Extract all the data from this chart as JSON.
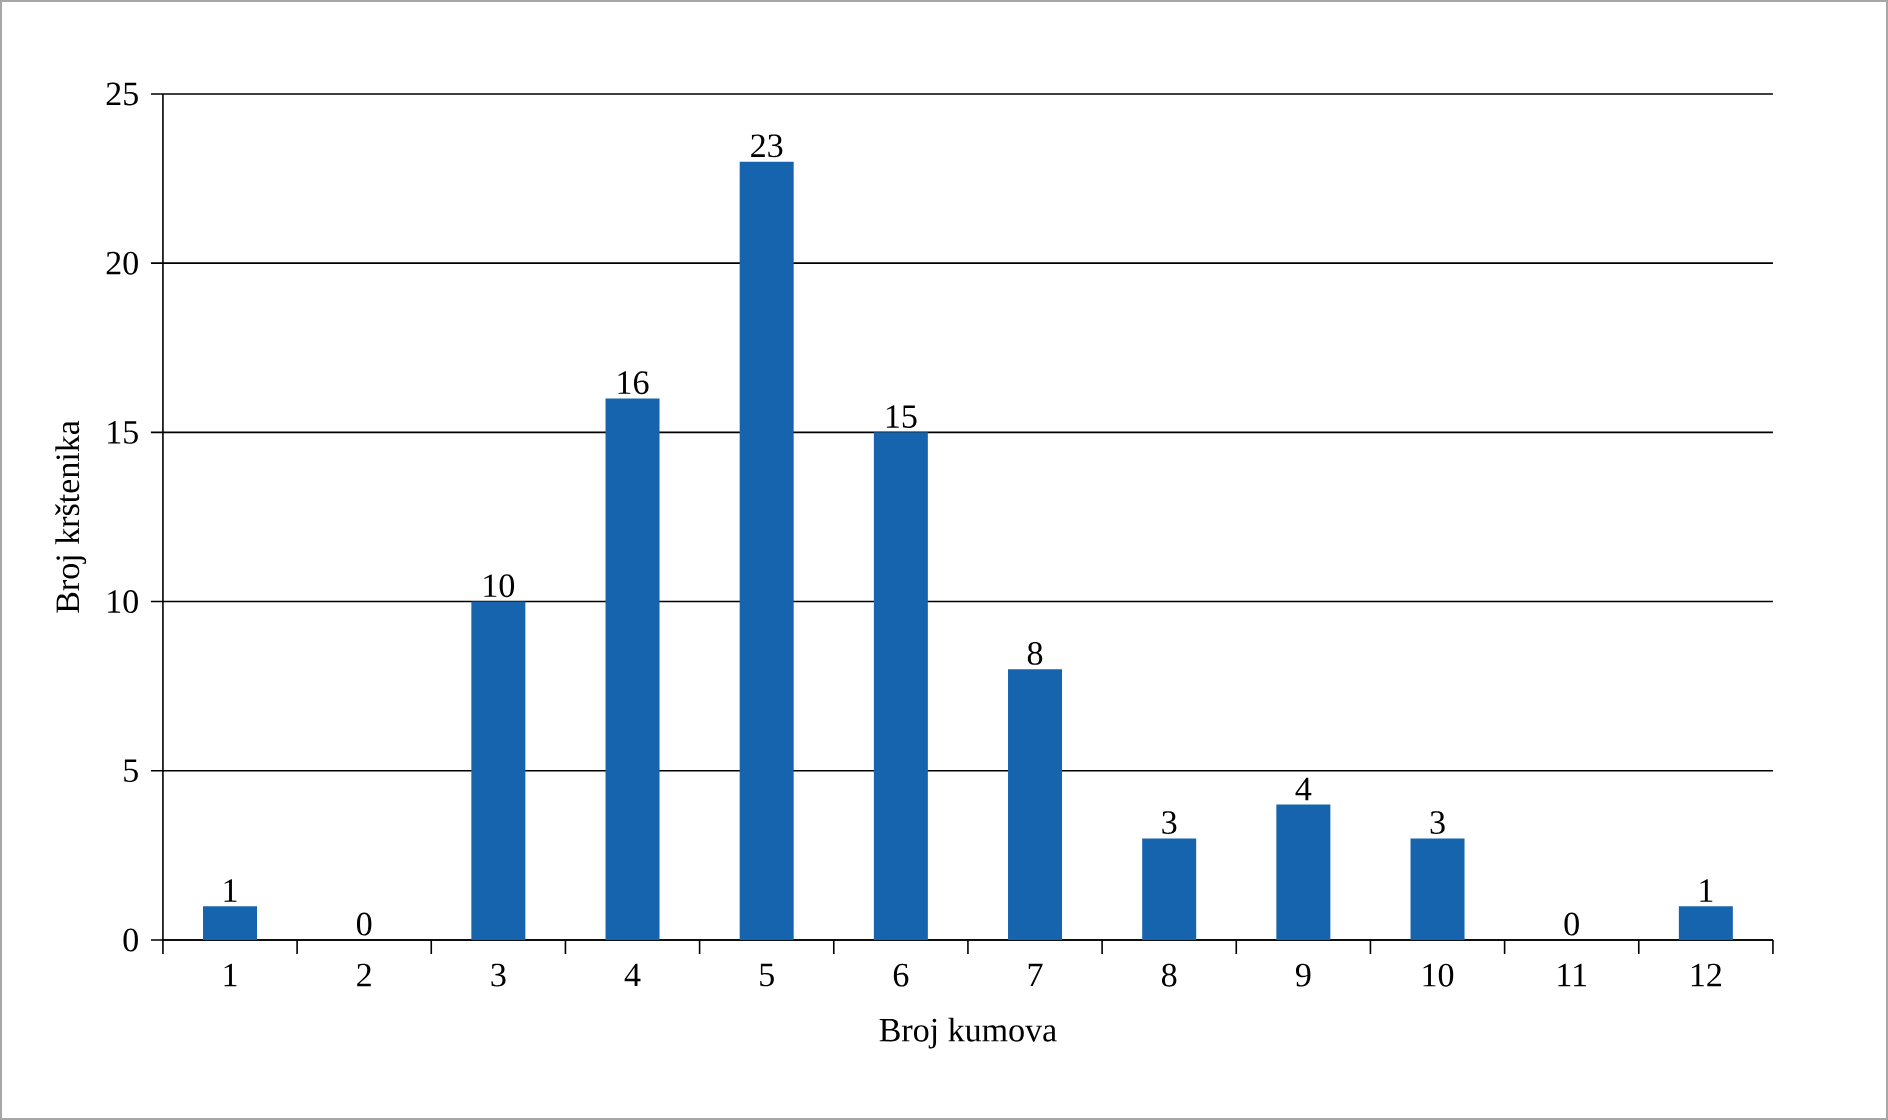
{
  "chart_data": {
    "type": "bar",
    "xlabel": "Broj kumova",
    "ylabel": "Broj krštenika",
    "categories": [
      "1",
      "2",
      "3",
      "4",
      "5",
      "6",
      "7",
      "8",
      "9",
      "10",
      "11",
      "12"
    ],
    "values": [
      1,
      0,
      10,
      16,
      23,
      15,
      8,
      3,
      4,
      3,
      0,
      1
    ],
    "color": "#1764ae",
    "ylim": [
      0,
      25
    ],
    "yticks": [
      0,
      5,
      10,
      15,
      20,
      25
    ],
    "grid": "y",
    "data_labels": true
  }
}
